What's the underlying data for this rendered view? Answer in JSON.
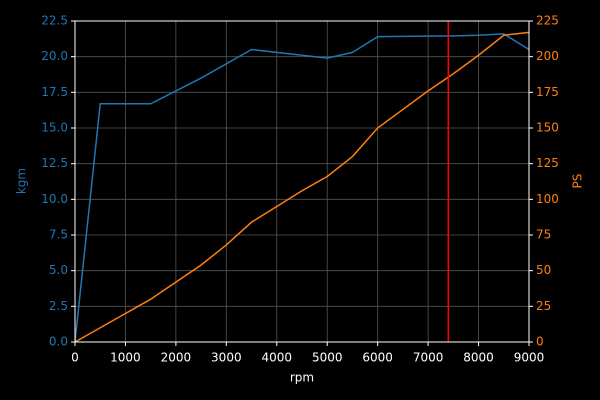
{
  "chart_data": {
    "type": "line",
    "x": [
      0,
      500,
      1000,
      1500,
      2000,
      2500,
      3000,
      3500,
      4000,
      4500,
      5000,
      5500,
      6000,
      6500,
      7000,
      7500,
      8000,
      8500,
      9000
    ],
    "series": [
      {
        "name": "kgm",
        "color": "#1f77b4",
        "values": [
          0,
          16.7,
          16.7,
          16.7,
          17.6,
          18.5,
          19.5,
          20.5,
          20.3,
          20.1,
          19.9,
          20.3,
          21.4,
          21.42,
          21.44,
          21.46,
          21.5,
          21.6,
          20.5
        ]
      },
      {
        "name": "PS",
        "color": "#ff7f0e",
        "axis": "y2",
        "values": [
          0,
          10,
          20,
          30,
          42,
          54,
          68,
          84,
          95,
          106,
          116,
          130,
          150,
          163,
          176,
          188,
          201,
          215,
          217
        ]
      }
    ],
    "xlabel": "rpm",
    "ylabel": "kgm",
    "y2label": "PS",
    "xlim": [
      0,
      9000
    ],
    "xticks": [
      0,
      1000,
      2000,
      3000,
      4000,
      5000,
      6000,
      7000,
      8000,
      9000
    ],
    "ylim": [
      0,
      22.5
    ],
    "yticks": [
      {
        "value": 0,
        "label": "0.0"
      },
      2.5,
      {
        "value": 5,
        "label": "5.0"
      },
      7.5,
      {
        "value": 10,
        "label": "10.0"
      },
      12.5,
      {
        "value": 15,
        "label": "15.0"
      },
      17.5,
      {
        "value": 20,
        "label": "20.0"
      },
      22.5
    ],
    "y2lim": [
      0,
      225
    ],
    "y2ticks": [
      0,
      25,
      50,
      75,
      100,
      125,
      150,
      175,
      200,
      225
    ],
    "vline": 7400,
    "vline_color": "#ff0000",
    "grid": true
  }
}
